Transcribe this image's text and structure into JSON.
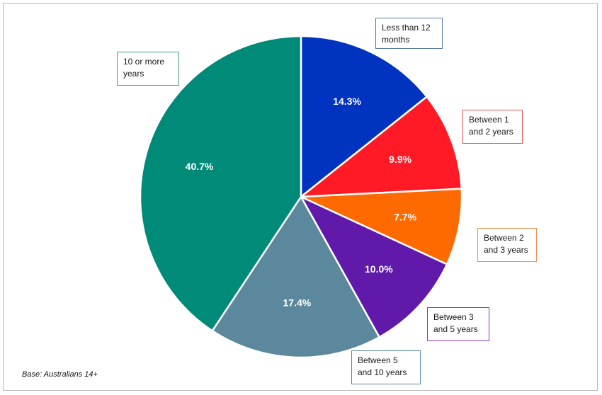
{
  "chart_data": {
    "type": "pie",
    "title": "",
    "slices": [
      {
        "label": "Less than 12 months",
        "value": 14.3,
        "value_label": "14.3%",
        "color": "#0033c0"
      },
      {
        "label": "Between 1 and 2 years",
        "value": 9.9,
        "value_label": "9.9%",
        "color": "#ff1a26"
      },
      {
        "label": "Between 2 and 3 years",
        "value": 7.7,
        "value_label": "7.7%",
        "color": "#ff6a00"
      },
      {
        "label": "Between 3 and 5 years",
        "value": 10.0,
        "value_label": "10.0%",
        "color": "#6019a8"
      },
      {
        "label": "Between 5 and 10 years",
        "value": 17.4,
        "value_label": "17.4%",
        "color": "#5b889c"
      },
      {
        "label": "10 or more years",
        "value": 40.7,
        "value_label": "40.7%",
        "color": "#008a78"
      }
    ],
    "start_angle": "12 o'clock",
    "direction": "clockwise",
    "legend": "callout boxes beside each slice"
  },
  "footnote": "Base: Australians 14+"
}
